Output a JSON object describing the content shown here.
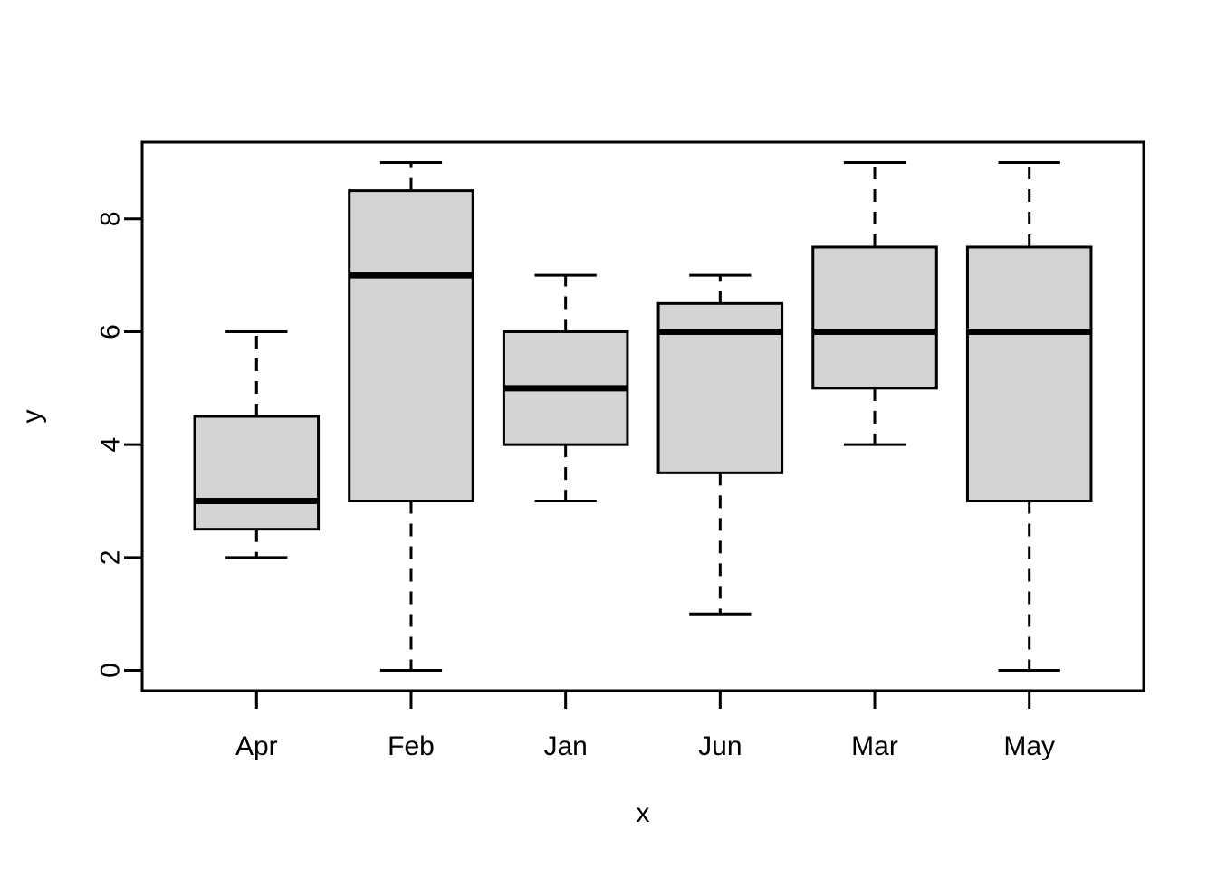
{
  "chart_data": {
    "type": "boxplot",
    "xlabel": "x",
    "ylabel": "y",
    "categories": [
      "Apr",
      "Feb",
      "Jan",
      "Jun",
      "Mar",
      "May"
    ],
    "series": [
      {
        "name": "Apr",
        "whisker_low": 2,
        "q1": 2.5,
        "median": 3,
        "q3": 4.5,
        "whisker_high": 6
      },
      {
        "name": "Feb",
        "whisker_low": 0,
        "q1": 3,
        "median": 7,
        "q3": 8.5,
        "whisker_high": 9
      },
      {
        "name": "Jan",
        "whisker_low": 3,
        "q1": 4,
        "median": 5,
        "q3": 6,
        "whisker_high": 7
      },
      {
        "name": "Jun",
        "whisker_low": 1,
        "q1": 3.5,
        "median": 6,
        "q3": 6.5,
        "whisker_high": 7
      },
      {
        "name": "Mar",
        "whisker_low": 4,
        "q1": 5,
        "median": 6,
        "q3": 7.5,
        "whisker_high": 9
      },
      {
        "name": "May",
        "whisker_low": 0,
        "q1": 3,
        "median": 6,
        "q3": 7.5,
        "whisker_high": 9
      }
    ],
    "yticks": [
      0,
      2,
      4,
      6,
      8
    ],
    "ylim": [
      -0.36,
      9.36
    ],
    "xlim": [
      0.26,
      6.74
    ],
    "grid": false,
    "legend": null,
    "outliers": [],
    "box_fill": "#d3d3d3",
    "line_color": "#000000",
    "background": "#ffffff"
  }
}
